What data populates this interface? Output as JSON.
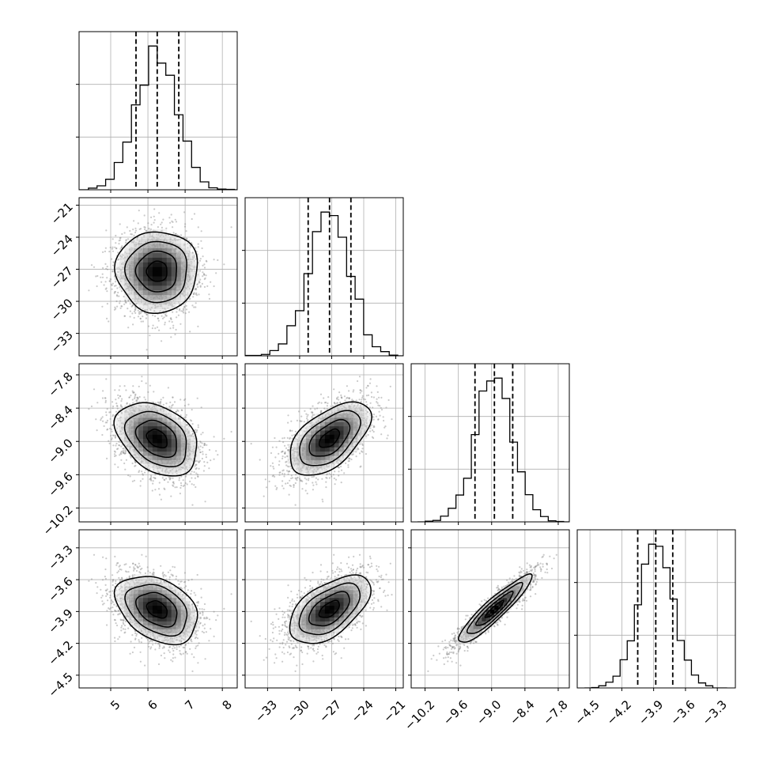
{
  "chart_data": {
    "type": "corner",
    "title": "",
    "parameters": [
      "",
      "",
      "",
      ""
    ],
    "n_samples_shown": 2500,
    "colors": {
      "hist": "#000000",
      "points": "#8a8a8a",
      "density_dark": "#000000"
    },
    "grid": true,
    "axis_ranges": [
      [
        4.15,
        8.4
      ],
      [
        -35.1,
        -20.3
      ],
      [
        -10.45,
        -7.6
      ],
      [
        -4.62,
        -3.13
      ]
    ],
    "ticks": [
      [
        5,
        6,
        7,
        8
      ],
      [
        -33,
        -30,
        -27,
        -24,
        -21
      ],
      [
        -10.2,
        -9.6,
        -9.0,
        -8.4,
        -7.8
      ],
      [
        -4.5,
        -4.2,
        -3.9,
        -3.6,
        -3.3
      ]
    ],
    "tick_labels": [
      [
        "5",
        "6",
        "7",
        "8"
      ],
      [
        "−33",
        "−30",
        "−27",
        "−24",
        "−21"
      ],
      [
        "−10.2",
        "−9.6",
        "−9.0",
        "−8.4",
        "−7.8"
      ],
      [
        "−4.5",
        "−4.2",
        "−3.9",
        "−3.6",
        "−3.3"
      ]
    ],
    "means": [
      6.25,
      -27.2,
      -8.95,
      -3.88
    ],
    "stds": [
      0.55,
      1.9,
      0.33,
      0.16
    ],
    "quantiles": [
      [
        5.68,
        6.25,
        6.83
      ],
      [
        -29.2,
        -27.2,
        -25.2
      ],
      [
        -9.3,
        -8.95,
        -8.62
      ],
      [
        -4.05,
        -3.88,
        -3.72
      ]
    ],
    "correlations": [
      [
        1,
        0,
        -0.35,
        -0.35
      ],
      [
        0,
        1,
        0.55,
        0.55
      ],
      [
        -0.35,
        0.55,
        1,
        0.92
      ],
      [
        -0.35,
        0.55,
        0.92,
        1
      ]
    ],
    "contour_levels_sigma": [
      0.5,
      1.0,
      1.5,
      2.0
    ]
  }
}
